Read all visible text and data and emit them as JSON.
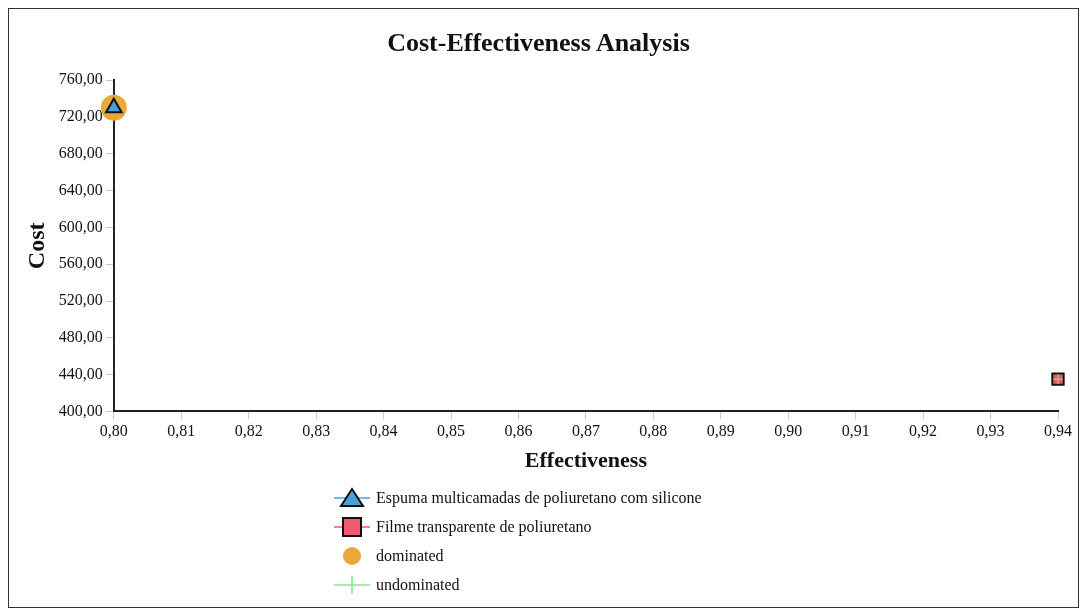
{
  "chart_data": {
    "type": "scatter",
    "title": "Cost-Effectiveness Analysis",
    "xlabel": "Effectiveness",
    "ylabel": "Cost",
    "xlim": [
      0.8,
      0.94
    ],
    "xticks": [
      {
        "value": 0.8,
        "label": "0,80"
      },
      {
        "value": 0.81,
        "label": "0,81"
      },
      {
        "value": 0.82,
        "label": "0,82"
      },
      {
        "value": 0.83,
        "label": "0,83"
      },
      {
        "value": 0.84,
        "label": "0,84"
      },
      {
        "value": 0.85,
        "label": "0,85"
      },
      {
        "value": 0.86,
        "label": "0,86"
      },
      {
        "value": 0.87,
        "label": "0,87"
      },
      {
        "value": 0.88,
        "label": "0,88"
      },
      {
        "value": 0.89,
        "label": "0,89"
      },
      {
        "value": 0.9,
        "label": "0,90"
      },
      {
        "value": 0.91,
        "label": "0,91"
      },
      {
        "value": 0.92,
        "label": "0,92"
      },
      {
        "value": 0.93,
        "label": "0,93"
      },
      {
        "value": 0.94,
        "label": "0,94"
      }
    ],
    "ylim": [
      400,
      760
    ],
    "yticks": [
      {
        "value": 400,
        "label": "400,00"
      },
      {
        "value": 440,
        "label": "440,00"
      },
      {
        "value": 480,
        "label": "480,00"
      },
      {
        "value": 520,
        "label": "520,00"
      },
      {
        "value": 560,
        "label": "560,00"
      },
      {
        "value": 600,
        "label": "600,00"
      },
      {
        "value": 640,
        "label": "640,00"
      },
      {
        "value": 680,
        "label": "680,00"
      },
      {
        "value": 720,
        "label": "720,00"
      },
      {
        "value": 760,
        "label": "760,00"
      }
    ],
    "grid": false,
    "legend": "bottom",
    "x": [
      0.8,
      0.94
    ],
    "series": [
      {
        "name": "Espuma multicamadas de poliuretano com silicone",
        "color": "#4a9fd8",
        "marker": "triangle",
        "values": [
          730,
          null
        ]
      },
      {
        "name": "Filme transparente de poliuretano",
        "color": "#f05a6e",
        "marker": "square",
        "values": [
          null,
          435
        ]
      },
      {
        "name": "dominated",
        "color": "#e8a93a",
        "marker": "circle",
        "values": [
          730,
          null
        ]
      },
      {
        "name": "undominated",
        "color": "#7ef07e",
        "marker": "cross",
        "values": [
          null,
          435
        ]
      }
    ]
  }
}
